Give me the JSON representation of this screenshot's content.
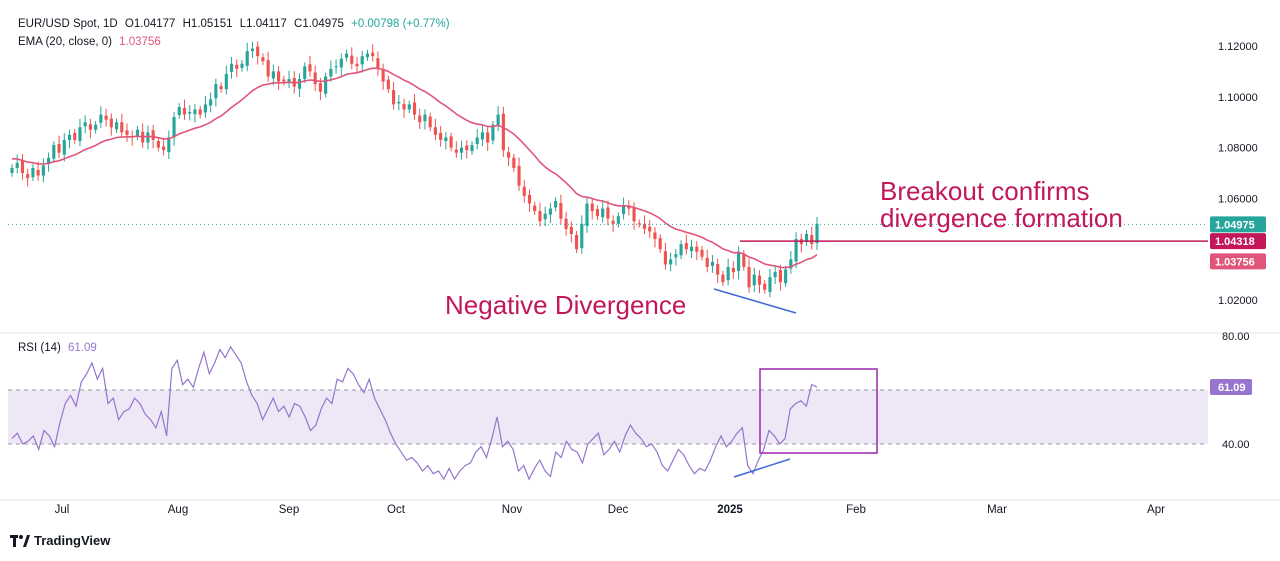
{
  "legend": {
    "symbol": "EUR/USD Spot, 1D",
    "open": "O1.04177",
    "high": "H1.05151",
    "low": "L1.04117",
    "close": "C1.04975",
    "change": "+0.00798 (+0.77%)",
    "ema_label": "EMA (20, close, 0)",
    "ema_value": "1.03756",
    "rsi_label": "RSI (14)",
    "rsi_value": "61.09"
  },
  "colors": {
    "up": "#26a69a",
    "down": "#ef5350",
    "ema": "#e0567a",
    "rsi": "#9575cd",
    "rsi_band": "#ede7f6",
    "annotation": "#c2185b",
    "divergence_line": "#3f6ad8",
    "box": "#9c27b0"
  },
  "annotations": {
    "breakout_line1": "Breakout confirms",
    "breakout_line2": "divergence formation",
    "negative_divergence": "Negative Divergence"
  },
  "brand": "TradingView",
  "chart_data": [
    {
      "type": "candlestick",
      "title": "EUR/USD Spot, 1D",
      "ylim": [
        1.0,
        1.13
      ],
      "y_ticks": [
        "1.12000",
        "1.10000",
        "1.08000",
        "1.06000",
        "1.04975",
        "1.04318",
        "1.03756",
        "1.02000"
      ],
      "x_ticks": [
        "Jul",
        "Aug",
        "Sep",
        "Oct",
        "Nov",
        "Dec",
        "2025",
        "Feb",
        "Mar",
        "Apr"
      ],
      "price_labels": [
        {
          "value": 1.04975,
          "text": "1.04975",
          "color": "#26a69a"
        },
        {
          "value": 1.04318,
          "text": "1.04318",
          "color": "#c2185b"
        },
        {
          "value": 1.03756,
          "text": "1.03756",
          "color": "#e0567a"
        }
      ],
      "ohlc": [
        1.04177,
        1.05151,
        1.04117,
        1.04975
      ],
      "ema_series": {
        "name": "EMA (20, close, 0)",
        "last": 1.03756
      },
      "close_series": [
        1.072,
        1.074,
        1.07,
        1.068,
        1.072,
        1.069,
        1.073,
        1.076,
        1.081,
        1.078,
        1.083,
        1.085,
        1.083,
        1.088,
        1.09,
        1.087,
        1.089,
        1.093,
        1.091,
        1.088,
        1.09,
        1.086,
        1.085,
        1.084,
        1.087,
        1.082,
        1.086,
        1.083,
        1.08,
        1.079,
        1.084,
        1.092,
        1.096,
        1.093,
        1.094,
        1.095,
        1.093,
        1.097,
        1.099,
        1.105,
        1.103,
        1.109,
        1.113,
        1.111,
        1.113,
        1.118,
        1.119,
        1.116,
        1.114,
        1.108,
        1.11,
        1.106,
        1.106,
        1.107,
        1.104,
        1.107,
        1.112,
        1.11,
        1.105,
        1.102,
        1.108,
        1.111,
        1.112,
        1.115,
        1.117,
        1.113,
        1.112,
        1.116,
        1.117,
        1.116,
        1.111,
        1.106,
        1.103,
        1.097,
        1.098,
        1.095,
        1.097,
        1.093,
        1.09,
        1.093,
        1.088,
        1.085,
        1.083,
        1.084,
        1.08,
        1.078,
        1.08,
        1.079,
        1.081,
        1.084,
        1.086,
        1.082,
        1.089,
        1.093,
        1.079,
        1.076,
        1.072,
        1.065,
        1.061,
        1.058,
        1.055,
        1.051,
        1.054,
        1.056,
        1.059,
        1.052,
        1.048,
        1.046,
        1.04,
        1.05,
        1.058,
        1.055,
        1.053,
        1.056,
        1.052,
        1.05,
        1.053,
        1.057,
        1.056,
        1.051,
        1.05,
        1.048,
        1.047,
        1.044,
        1.04,
        1.034,
        1.036,
        1.038,
        1.042,
        1.04,
        1.041,
        1.039,
        1.037,
        1.033,
        1.035,
        1.03,
        1.027,
        1.033,
        1.031,
        1.039,
        1.033,
        1.025,
        1.03,
        1.026,
        1.024,
        1.029,
        1.031,
        1.027,
        1.032,
        1.036,
        1.044,
        1.042,
        1.046,
        1.042,
        1.05
      ]
    },
    {
      "type": "line",
      "title": "RSI (14)",
      "ylim": [
        20,
        85
      ],
      "y_ticks": [
        "80.00",
        "40.00"
      ],
      "band": [
        40,
        60
      ],
      "last_label": {
        "value": 61.09,
        "text": "61.09"
      },
      "series": [
        {
          "name": "RSI (14)",
          "values": [
            42,
            44,
            40,
            41,
            43,
            38,
            45,
            43,
            39,
            48,
            55,
            58,
            54,
            63,
            66,
            70,
            64,
            68,
            55,
            57,
            49,
            52,
            53,
            57,
            55,
            51,
            49,
            46,
            52,
            43,
            68,
            71,
            62,
            64,
            61,
            68,
            74,
            66,
            70,
            75,
            72,
            76,
            73,
            70,
            63,
            58,
            55,
            49,
            53,
            57,
            52,
            54,
            50,
            55,
            54,
            50,
            45,
            47,
            53,
            57,
            55,
            64,
            63,
            68,
            66,
            62,
            59,
            64,
            57,
            53,
            49,
            44,
            40,
            37,
            34,
            35,
            33,
            30,
            32,
            29,
            30,
            27,
            31,
            27,
            30,
            32,
            33,
            37,
            39,
            35,
            42,
            50,
            39,
            41,
            38,
            30,
            32,
            27,
            31,
            34,
            30,
            28,
            37,
            35,
            41,
            38,
            37,
            33,
            40,
            42,
            44,
            36,
            38,
            41,
            37,
            43,
            47,
            44,
            42,
            39,
            40,
            37,
            32,
            30,
            34,
            38,
            36,
            32,
            29,
            31,
            30,
            34,
            39,
            43,
            39,
            41,
            44,
            46,
            32,
            29,
            34,
            38,
            45,
            43,
            40,
            42,
            53,
            55,
            56,
            54,
            62,
            61.09
          ]
        }
      ]
    }
  ]
}
